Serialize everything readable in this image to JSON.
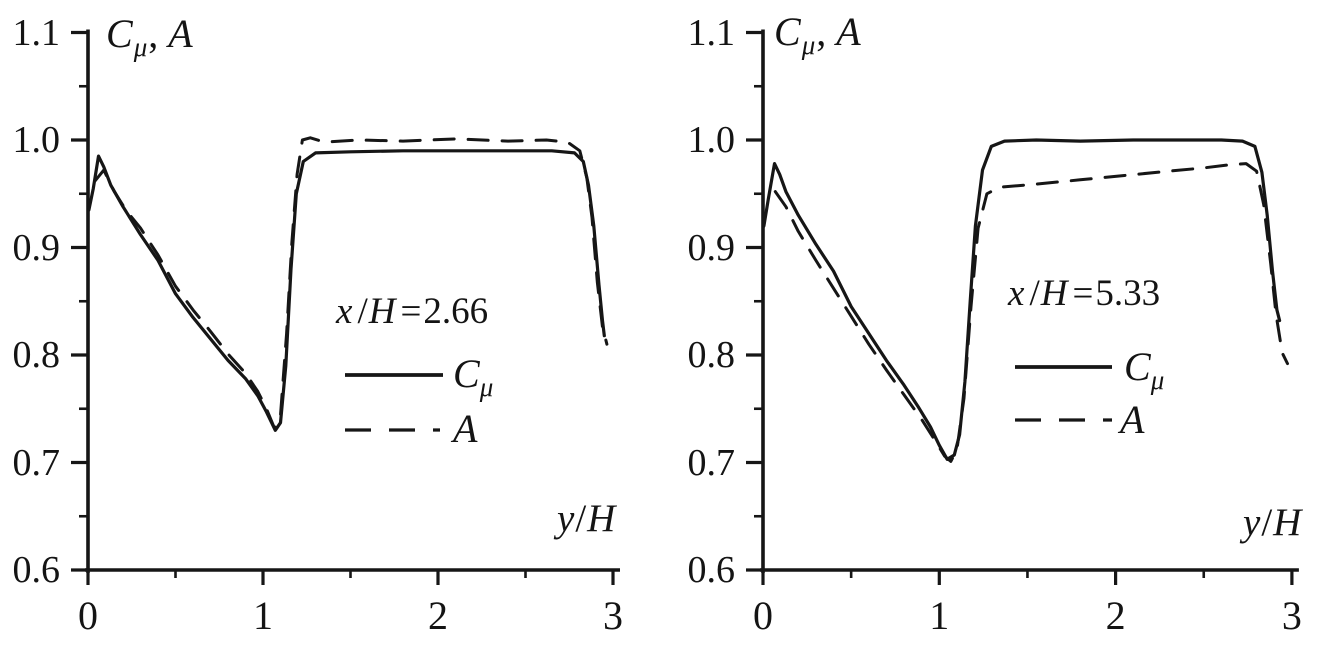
{
  "figure": {
    "background": "#ffffff",
    "ink_color": "#161616",
    "description_labels": {
      "y_axis_title": "Cμ, A",
      "x_axis_title": "y/H"
    }
  },
  "ui": {
    "charts": [
      {
        "axis_title": {
          "c": "C",
          "mu": "μ",
          "comma": ",",
          "a": "A"
        },
        "annotation": {
          "x": "x",
          "slash": "/",
          "h": "H",
          "equals": "=",
          "value": "2.66"
        },
        "legend": {
          "solid_main": "C",
          "solid_sub": "μ",
          "dashed_label": "A"
        },
        "x_axis_label": {
          "y": "y",
          "slash": "/",
          "h": "H"
        }
      },
      {
        "axis_title": {
          "c": "C",
          "mu": "μ",
          "comma": ",",
          "a": "A"
        },
        "annotation": {
          "x": "x",
          "slash": "/",
          "h": "H",
          "equals": "=",
          "value": "5.33"
        },
        "legend": {
          "solid_main": "C",
          "solid_sub": "μ",
          "dashed_label": "A"
        },
        "x_axis_label": {
          "y": "y",
          "slash": "/",
          "h": "H"
        }
      }
    ]
  },
  "chart_data": [
    {
      "type": "line",
      "title": "x/H=2.66",
      "xlabel": "y/H",
      "ylabel": "Cμ, A",
      "xlim": [
        0,
        3
      ],
      "ylim": [
        0.6,
        1.1
      ],
      "grid": false,
      "legend_position": "center-right",
      "x_major_ticks": [
        0,
        1,
        2,
        3
      ],
      "x_minor_ticks": [
        0.5,
        1.5,
        2.5
      ],
      "x_tick_labels": [
        "0",
        "1",
        "2",
        "3"
      ],
      "y_major_ticks": [
        0.6,
        0.7,
        0.8,
        0.9,
        1.0,
        1.1
      ],
      "y_minor_ticks": [
        0.65,
        0.75,
        0.85,
        0.95,
        1.05
      ],
      "y_tick_labels": [
        "0.6",
        "0.7",
        "0.8",
        "0.9",
        "1.0",
        "1.1"
      ],
      "series": [
        {
          "name": "Cμ",
          "style": "solid",
          "points": [
            [
              0.005,
              0.935
            ],
            [
              0.03,
              0.955
            ],
            [
              0.06,
              0.985
            ],
            [
              0.09,
              0.975
            ],
            [
              0.13,
              0.958
            ],
            [
              0.2,
              0.938
            ],
            [
              0.3,
              0.912
            ],
            [
              0.4,
              0.888
            ],
            [
              0.5,
              0.857
            ],
            [
              0.6,
              0.835
            ],
            [
              0.7,
              0.815
            ],
            [
              0.8,
              0.795
            ],
            [
              0.9,
              0.778
            ],
            [
              0.97,
              0.762
            ],
            [
              1.02,
              0.747
            ],
            [
              1.07,
              0.73
            ],
            [
              1.1,
              0.737
            ],
            [
              1.13,
              0.79
            ],
            [
              1.16,
              0.88
            ],
            [
              1.19,
              0.95
            ],
            [
              1.23,
              0.98
            ],
            [
              1.3,
              0.988
            ],
            [
              1.5,
              0.989
            ],
            [
              1.8,
              0.99
            ],
            [
              2.1,
              0.99
            ],
            [
              2.4,
              0.99
            ],
            [
              2.65,
              0.99
            ],
            [
              2.78,
              0.988
            ],
            [
              2.83,
              0.98
            ],
            [
              2.86,
              0.958
            ],
            [
              2.89,
              0.92
            ],
            [
              2.92,
              0.865
            ],
            [
              2.94,
              0.832
            ],
            [
              2.95,
              0.818
            ]
          ]
        },
        {
          "name": "A",
          "style": "dashed",
          "points": [
            [
              0.04,
              0.962
            ],
            [
              0.09,
              0.972
            ],
            [
              0.15,
              0.952
            ],
            [
              0.22,
              0.934
            ],
            [
              0.3,
              0.918
            ],
            [
              0.4,
              0.893
            ],
            [
              0.5,
              0.864
            ],
            [
              0.6,
              0.842
            ],
            [
              0.7,
              0.822
            ],
            [
              0.8,
              0.801
            ],
            [
              0.9,
              0.783
            ],
            [
              0.97,
              0.766
            ],
            [
              1.02,
              0.75
            ],
            [
              1.065,
              0.732
            ],
            [
              1.1,
              0.744
            ],
            [
              1.135,
              0.82
            ],
            [
              1.165,
              0.905
            ],
            [
              1.195,
              0.968
            ],
            [
              1.225,
              1.0
            ],
            [
              1.27,
              1.002
            ],
            [
              1.35,
              0.998
            ],
            [
              1.55,
              1.0
            ],
            [
              1.8,
              0.999
            ],
            [
              2.1,
              1.001
            ],
            [
              2.4,
              0.999
            ],
            [
              2.62,
              1.0
            ],
            [
              2.74,
              0.998
            ],
            [
              2.81,
              0.99
            ],
            [
              2.85,
              0.965
            ],
            [
              2.88,
              0.928
            ],
            [
              2.91,
              0.868
            ],
            [
              2.94,
              0.826
            ],
            [
              2.965,
              0.81
            ]
          ]
        }
      ]
    },
    {
      "type": "line",
      "title": "x/H=5.33",
      "xlabel": "y/H",
      "ylabel": "Cμ, A",
      "xlim": [
        0,
        3
      ],
      "ylim": [
        0.6,
        1.1
      ],
      "grid": false,
      "legend_position": "center-right",
      "x_major_ticks": [
        0,
        1,
        2,
        3
      ],
      "x_minor_ticks": [
        0.5,
        1.5,
        2.5
      ],
      "x_tick_labels": [
        "0",
        "1",
        "2",
        "3"
      ],
      "y_major_ticks": [
        0.6,
        0.7,
        0.8,
        0.9,
        1.0,
        1.1
      ],
      "y_minor_ticks": [
        0.65,
        0.75,
        0.85,
        0.95,
        1.05
      ],
      "y_tick_labels": [
        "0.6",
        "0.7",
        "0.8",
        "0.9",
        "1.0",
        "1.1"
      ],
      "series": [
        {
          "name": "Cμ",
          "style": "solid",
          "points": [
            [
              0.005,
              0.92
            ],
            [
              0.03,
              0.945
            ],
            [
              0.065,
              0.978
            ],
            [
              0.095,
              0.968
            ],
            [
              0.13,
              0.952
            ],
            [
              0.2,
              0.93
            ],
            [
              0.3,
              0.903
            ],
            [
              0.4,
              0.878
            ],
            [
              0.5,
              0.845
            ],
            [
              0.6,
              0.82
            ],
            [
              0.7,
              0.795
            ],
            [
              0.8,
              0.772
            ],
            [
              0.88,
              0.752
            ],
            [
              0.95,
              0.733
            ],
            [
              1.0,
              0.716
            ],
            [
              1.045,
              0.703
            ],
            [
              1.085,
              0.707
            ],
            [
              1.115,
              0.726
            ],
            [
              1.145,
              0.775
            ],
            [
              1.175,
              0.85
            ],
            [
              1.205,
              0.92
            ],
            [
              1.245,
              0.972
            ],
            [
              1.295,
              0.994
            ],
            [
              1.37,
              0.999
            ],
            [
              1.55,
              1.0
            ],
            [
              1.8,
              0.999
            ],
            [
              2.1,
              1.0
            ],
            [
              2.4,
              1.0
            ],
            [
              2.6,
              1.0
            ],
            [
              2.72,
              0.999
            ],
            [
              2.79,
              0.994
            ],
            [
              2.83,
              0.97
            ],
            [
              2.86,
              0.93
            ],
            [
              2.89,
              0.878
            ],
            [
              2.915,
              0.842
            ],
            [
              2.93,
              0.832
            ]
          ]
        },
        {
          "name": "A",
          "style": "dashed",
          "points": [
            [
              0.07,
              0.952
            ],
            [
              0.13,
              0.938
            ],
            [
              0.2,
              0.915
            ],
            [
              0.3,
              0.888
            ],
            [
              0.4,
              0.862
            ],
            [
              0.5,
              0.836
            ],
            [
              0.6,
              0.81
            ],
            [
              0.7,
              0.786
            ],
            [
              0.8,
              0.763
            ],
            [
              0.9,
              0.74
            ],
            [
              0.97,
              0.722
            ],
            [
              1.03,
              0.706
            ],
            [
              1.065,
              0.701
            ],
            [
              1.1,
              0.712
            ],
            [
              1.14,
              0.76
            ],
            [
              1.18,
              0.845
            ],
            [
              1.22,
              0.918
            ],
            [
              1.27,
              0.95
            ],
            [
              1.34,
              0.956
            ],
            [
              1.55,
              0.959
            ],
            [
              1.8,
              0.963
            ],
            [
              2.05,
              0.967
            ],
            [
              2.3,
              0.971
            ],
            [
              2.5,
              0.974
            ],
            [
              2.65,
              0.977
            ],
            [
              2.74,
              0.978
            ],
            [
              2.8,
              0.971
            ],
            [
              2.84,
              0.94
            ],
            [
              2.88,
              0.885
            ],
            [
              2.91,
              0.838
            ],
            [
              2.945,
              0.802
            ],
            [
              2.975,
              0.792
            ]
          ]
        }
      ]
    }
  ]
}
